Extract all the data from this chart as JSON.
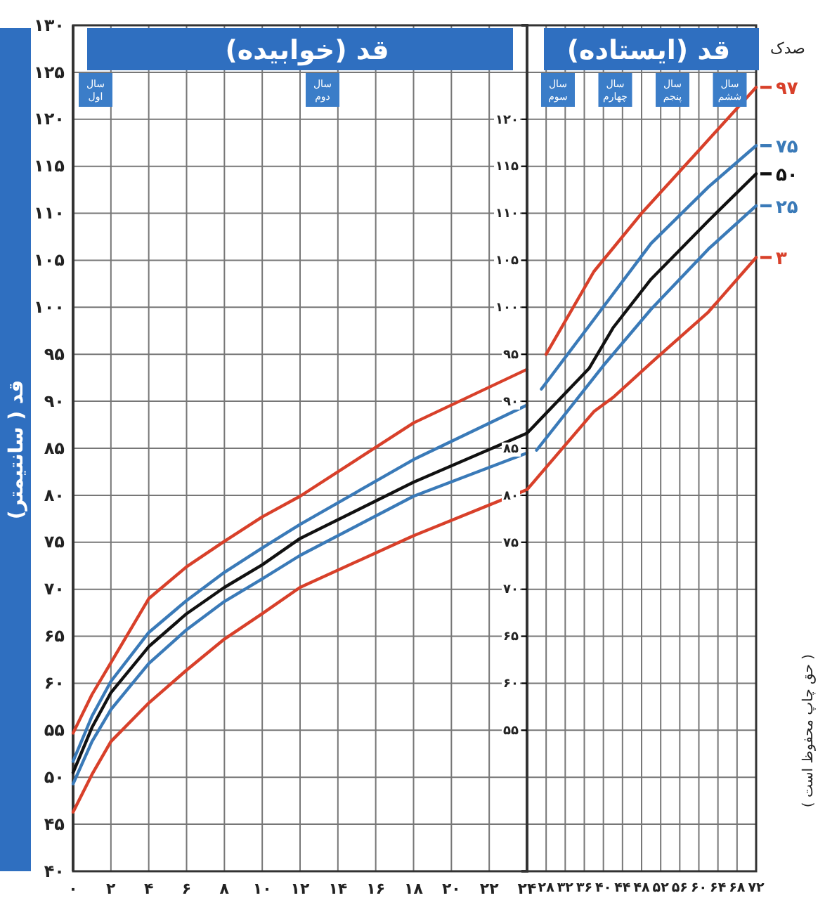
{
  "chart_data": [
    {
      "type": "line",
      "title": "قد (خوابیده)",
      "ylabel": "قد ( سانتیمتر)",
      "grid": true,
      "xlim": [
        0,
        24
      ],
      "ylim": [
        40,
        130
      ],
      "xticks": [
        {
          "value": 0,
          "label": "۰"
        },
        {
          "value": 2,
          "label": "۲"
        },
        {
          "value": 4,
          "label": "۴"
        },
        {
          "value": 6,
          "label": "۶"
        },
        {
          "value": 8,
          "label": "۸"
        },
        {
          "value": 10,
          "label": "۱۰"
        },
        {
          "value": 12,
          "label": "۱۲"
        },
        {
          "value": 14,
          "label": "۱۴"
        },
        {
          "value": 16,
          "label": "۱۶"
        },
        {
          "value": 18,
          "label": "۱۸"
        },
        {
          "value": 20,
          "label": "۲۰"
        },
        {
          "value": 22,
          "label": "۲۲"
        },
        {
          "value": 24,
          "label": "۲۴"
        }
      ],
      "yticks": [
        {
          "value": 40,
          "label": "۴۰"
        },
        {
          "value": 45,
          "label": "۴۵"
        },
        {
          "value": 50,
          "label": "۵۰"
        },
        {
          "value": 55,
          "label": "۵۵"
        },
        {
          "value": 60,
          "label": "۶۰"
        },
        {
          "value": 65,
          "label": "۶۵"
        },
        {
          "value": 70,
          "label": "۷۰"
        },
        {
          "value": 75,
          "label": "۷۵"
        },
        {
          "value": 80,
          "label": "۸۰"
        },
        {
          "value": 85,
          "label": "۸۵"
        },
        {
          "value": 90,
          "label": "۹۰"
        },
        {
          "value": 95,
          "label": "۹۵"
        },
        {
          "value": 100,
          "label": "۱۰۰"
        },
        {
          "value": 105,
          "label": "۱۰۵"
        },
        {
          "value": 110,
          "label": "۱۱۰"
        },
        {
          "value": 115,
          "label": "۱۱۵"
        },
        {
          "value": 120,
          "label": "۱۲۰"
        },
        {
          "value": 125,
          "label": "۱۲۵"
        },
        {
          "value": 130,
          "label": "۱۳۰"
        }
      ],
      "x": [
        0,
        1,
        2,
        4,
        6,
        8,
        10,
        12,
        18,
        24
      ],
      "series": [
        {
          "color": "#d8402a",
          "values": [
            54.7,
            58.8,
            62.2,
            69.0,
            72.4,
            75.1,
            77.7,
            79.9,
            87.7,
            93.4
          ]
        },
        {
          "color": "#3a7ab8",
          "values": [
            51.7,
            56.5,
            60.2,
            65.4,
            68.8,
            71.8,
            74.4,
            76.9,
            83.8,
            89.6
          ]
        },
        {
          "color": "#111111",
          "values": [
            50.5,
            55.3,
            59.0,
            63.9,
            67.4,
            70.2,
            72.6,
            75.4,
            81.4,
            86.6
          ]
        },
        {
          "color": "#3a7ab8",
          "values": [
            49.3,
            53.8,
            57.2,
            62.1,
            65.7,
            68.7,
            71.1,
            73.6,
            79.9,
            84.5
          ]
        },
        {
          "color": "#d8402a",
          "values": [
            46.3,
            50.3,
            53.8,
            57.9,
            61.4,
            64.7,
            67.4,
            70.2,
            75.7,
            80.6
          ]
        }
      ],
      "annotations": [
        "سال اول",
        "سال دوم"
      ]
    },
    {
      "type": "line",
      "title": "قد (ایستاده)",
      "legend_title": "صدک",
      "legend": "right",
      "grid": true,
      "xlim": [
        24,
        72
      ],
      "ylim": [
        40,
        130
      ],
      "xticks": [
        {
          "value": 28,
          "label": "۲۸"
        },
        {
          "value": 32,
          "label": "۳۲"
        },
        {
          "value": 36,
          "label": "۳۶"
        },
        {
          "value": 40,
          "label": "۴۰"
        },
        {
          "value": 44,
          "label": "۴۴"
        },
        {
          "value": 48,
          "label": "۴۸"
        },
        {
          "value": 52,
          "label": "۵۲"
        },
        {
          "value": 56,
          "label": "۵۶"
        },
        {
          "value": 60,
          "label": "۶۰"
        },
        {
          "value": 64,
          "label": "۶۴"
        },
        {
          "value": 68,
          "label": "۶۸"
        },
        {
          "value": 72,
          "label": "۷۲"
        }
      ],
      "yticks": [
        {
          "value": 55,
          "label": "۵۵"
        },
        {
          "value": 60,
          "label": "۶۰"
        },
        {
          "value": 65,
          "label": "۶۵"
        },
        {
          "value": 70,
          "label": "۷۰"
        },
        {
          "value": 75,
          "label": "۷۵"
        },
        {
          "value": 80,
          "label": "۸۰"
        },
        {
          "value": 85,
          "label": "۸۵"
        },
        {
          "value": 90,
          "label": "۹۰"
        },
        {
          "value": 95,
          "label": "۹۵"
        },
        {
          "value": 100,
          "label": "۱۰۰"
        },
        {
          "value": 105,
          "label": "۱۰۵"
        },
        {
          "value": 110,
          "label": "۱۱۰"
        },
        {
          "value": 115,
          "label": "۱۱۵"
        },
        {
          "value": 120,
          "label": "۱۲۰"
        }
      ],
      "series": [
        {
          "name": "۹۷",
          "color": "#d8402a",
          "x": [
            28,
            38,
            48,
            60,
            72
          ],
          "values": [
            95.0,
            103.8,
            110.0,
            116.7,
            123.4
          ]
        },
        {
          "name": "۷۵",
          "color": "#3a7ab8",
          "x": [
            27,
            38,
            50,
            62,
            72
          ],
          "values": [
            91.3,
            98.7,
            106.8,
            112.8,
            117.2
          ]
        },
        {
          "name": "۵۰",
          "color": "#111111",
          "x": [
            24,
            37,
            42,
            50,
            62,
            72
          ],
          "values": [
            86.6,
            93.5,
            97.8,
            103.0,
            109.2,
            114.2
          ]
        },
        {
          "name": "۲۵",
          "color": "#3a7ab8",
          "x": [
            26,
            40,
            50,
            62,
            72
          ],
          "values": [
            84.8,
            93.8,
            99.8,
            106.2,
            110.8
          ]
        },
        {
          "name": "۳",
          "color": "#d8402a",
          "x": [
            24,
            38,
            42,
            50,
            62,
            72
          ],
          "values": [
            80.6,
            88.9,
            90.4,
            94.1,
            99.5,
            105.3
          ]
        }
      ],
      "annotations": [
        "سال سوم",
        "سال چهارم",
        "سال پنجم",
        "سال ششم",
        "( حق چاپ محفوظ است )"
      ]
    }
  ]
}
